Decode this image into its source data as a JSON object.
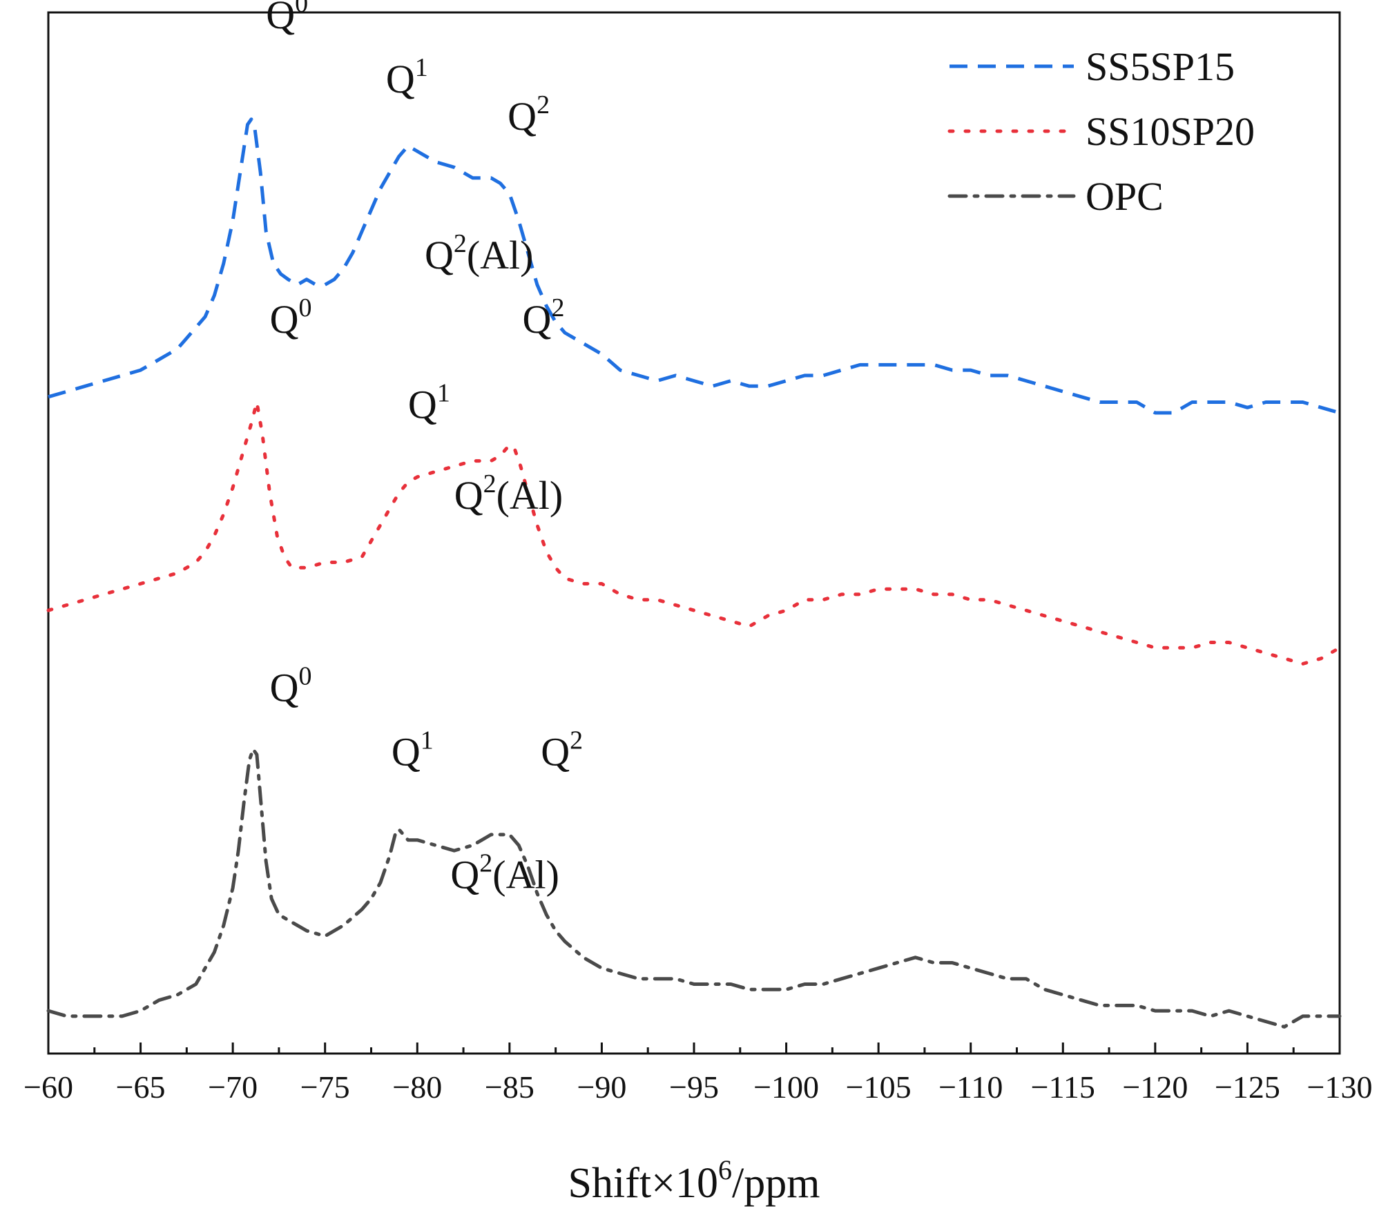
{
  "chart_data": {
    "type": "line",
    "title": "",
    "xlabel": "Shift×10",
    "xlabel_superscript": "6",
    "xlabel_unit": "/ppm",
    "ylabel": "",
    "xlim": [
      -60,
      -130
    ],
    "x_ticks": [
      -60,
      -65,
      -70,
      -75,
      -80,
      -85,
      -90,
      -95,
      -100,
      -105,
      -110,
      -115,
      -120,
      -125,
      -130
    ],
    "x_tick_labels": [
      "−60",
      "−65",
      "−70",
      "−75",
      "−80",
      "−85",
      "−90",
      "−95",
      "−100",
      "−105",
      "−110",
      "−115",
      "−120",
      "−125",
      "−130"
    ],
    "ylim": [
      0,
      1.95
    ],
    "grid": false,
    "legend_position": "top-right",
    "series": [
      {
        "name": "SS5SP15",
        "color": "#1f6fe0",
        "style": "dashed",
        "x": [
          -60,
          -61,
          -62,
          -63,
          -64,
          -65,
          -66,
          -67,
          -67.5,
          -68,
          -68.5,
          -69,
          -69.5,
          -70,
          -70.4,
          -70.8,
          -71,
          -71.2,
          -71.5,
          -71.8,
          -72.2,
          -72.6,
          -73,
          -73.5,
          -74,
          -74.5,
          -75,
          -75.5,
          -76,
          -76.5,
          -77,
          -77.5,
          -78,
          -78.5,
          -79,
          -79.5,
          -80,
          -80.5,
          -81,
          -82,
          -83,
          -84,
          -84.5,
          -85,
          -85.5,
          -86,
          -86.5,
          -87,
          -87.5,
          -88,
          -89,
          -90,
          -91,
          -92,
          -93,
          -94,
          -95,
          -96,
          -97,
          -98,
          -99,
          -100,
          -101,
          -102,
          -103,
          -104,
          -105,
          -106,
          -107,
          -108,
          -109,
          -110,
          -111,
          -112,
          -113,
          -114,
          -115,
          -116,
          -117,
          -118,
          -119,
          -120,
          -121,
          -122,
          -123,
          -124,
          -125,
          -126,
          -127,
          -128,
          -129,
          -130
        ],
        "y": [
          1.23,
          1.24,
          1.25,
          1.26,
          1.27,
          1.28,
          1.3,
          1.32,
          1.34,
          1.36,
          1.38,
          1.42,
          1.48,
          1.56,
          1.65,
          1.74,
          1.75,
          1.73,
          1.65,
          1.54,
          1.48,
          1.46,
          1.45,
          1.44,
          1.45,
          1.44,
          1.44,
          1.45,
          1.47,
          1.5,
          1.54,
          1.58,
          1.62,
          1.65,
          1.68,
          1.7,
          1.69,
          1.68,
          1.67,
          1.66,
          1.64,
          1.64,
          1.63,
          1.61,
          1.56,
          1.5,
          1.44,
          1.4,
          1.37,
          1.35,
          1.33,
          1.31,
          1.28,
          1.27,
          1.26,
          1.27,
          1.26,
          1.25,
          1.26,
          1.25,
          1.25,
          1.26,
          1.27,
          1.27,
          1.28,
          1.29,
          1.29,
          1.29,
          1.29,
          1.29,
          1.28,
          1.28,
          1.27,
          1.27,
          1.26,
          1.25,
          1.24,
          1.23,
          1.22,
          1.22,
          1.22,
          1.2,
          1.2,
          1.22,
          1.22,
          1.22,
          1.21,
          1.22,
          1.22,
          1.22,
          1.21,
          1.2
        ]
      },
      {
        "name": "SS10SP20",
        "color": "#e8303a",
        "style": "dotted",
        "x": [
          -60,
          -61,
          -62,
          -63,
          -64,
          -65,
          -66,
          -67,
          -68,
          -68.5,
          -69,
          -69.5,
          -70,
          -70.5,
          -71,
          -71.3,
          -71.6,
          -72,
          -72.4,
          -72.8,
          -73.2,
          -74,
          -75,
          -76,
          -77,
          -77.5,
          -78,
          -78.5,
          -79,
          -79.5,
          -80,
          -81,
          -82,
          -83,
          -84,
          -84.5,
          -85,
          -85.3,
          -85.6,
          -86,
          -86.5,
          -87,
          -87.5,
          -88,
          -89,
          -90,
          -91,
          -92,
          -93,
          -94,
          -95,
          -96,
          -97,
          -98,
          -99,
          -100,
          -101,
          -102,
          -103,
          -104,
          -105,
          -106,
          -107,
          -108,
          -109,
          -110,
          -111,
          -112,
          -113,
          -114,
          -115,
          -116,
          -117,
          -118,
          -119,
          -120,
          -121,
          -122,
          -123,
          -124,
          -125,
          -126,
          -127,
          -128,
          -129,
          -130
        ],
        "y": [
          0.83,
          0.84,
          0.85,
          0.86,
          0.87,
          0.88,
          0.89,
          0.9,
          0.92,
          0.94,
          0.97,
          1.01,
          1.06,
          1.12,
          1.18,
          1.22,
          1.16,
          1.05,
          0.97,
          0.93,
          0.91,
          0.91,
          0.92,
          0.92,
          0.93,
          0.96,
          0.99,
          1.02,
          1.05,
          1.07,
          1.08,
          1.09,
          1.1,
          1.11,
          1.11,
          1.12,
          1.14,
          1.13,
          1.1,
          1.05,
          0.99,
          0.94,
          0.91,
          0.89,
          0.88,
          0.88,
          0.86,
          0.85,
          0.85,
          0.84,
          0.83,
          0.82,
          0.81,
          0.8,
          0.82,
          0.83,
          0.85,
          0.85,
          0.86,
          0.86,
          0.87,
          0.87,
          0.87,
          0.86,
          0.86,
          0.85,
          0.85,
          0.84,
          0.83,
          0.82,
          0.81,
          0.8,
          0.79,
          0.78,
          0.77,
          0.76,
          0.76,
          0.76,
          0.77,
          0.77,
          0.76,
          0.75,
          0.74,
          0.73,
          0.74,
          0.76
        ]
      },
      {
        "name": "OPC",
        "color": "#4a4a4a",
        "style": "dashdot",
        "x": [
          -60,
          -61,
          -62,
          -63,
          -64,
          -65,
          -66,
          -67,
          -68,
          -68.5,
          -69,
          -69.5,
          -70,
          -70.3,
          -70.6,
          -70.9,
          -71.1,
          -71.3,
          -71.5,
          -71.8,
          -72.1,
          -72.5,
          -73,
          -74,
          -75,
          -76,
          -77,
          -77.5,
          -78,
          -78.5,
          -78.8,
          -79,
          -79.5,
          -80,
          -81,
          -82,
          -83,
          -83.5,
          -84,
          -84.5,
          -85,
          -85.5,
          -86,
          -86.5,
          -87,
          -87.5,
          -88,
          -89,
          -90,
          -91,
          -92,
          -93,
          -94,
          -95,
          -96,
          -97,
          -98,
          -99,
          -100,
          -101,
          -102,
          -103,
          -104,
          -105,
          -106,
          -107,
          -108,
          -109,
          -110,
          -111,
          -112,
          -113,
          -114,
          -115,
          -116,
          -117,
          -118,
          -119,
          -120,
          -121,
          -122,
          -123,
          -124,
          -125,
          -126,
          -127,
          -128,
          -129,
          -130
        ],
        "y": [
          0.08,
          0.07,
          0.07,
          0.07,
          0.07,
          0.08,
          0.1,
          0.11,
          0.13,
          0.16,
          0.19,
          0.24,
          0.31,
          0.38,
          0.47,
          0.55,
          0.57,
          0.56,
          0.48,
          0.36,
          0.29,
          0.26,
          0.25,
          0.23,
          0.22,
          0.24,
          0.27,
          0.29,
          0.32,
          0.37,
          0.41,
          0.42,
          0.4,
          0.4,
          0.39,
          0.38,
          0.39,
          0.4,
          0.41,
          0.41,
          0.41,
          0.39,
          0.35,
          0.3,
          0.26,
          0.23,
          0.21,
          0.18,
          0.16,
          0.15,
          0.14,
          0.14,
          0.14,
          0.13,
          0.13,
          0.13,
          0.12,
          0.12,
          0.12,
          0.13,
          0.13,
          0.14,
          0.15,
          0.16,
          0.17,
          0.18,
          0.17,
          0.17,
          0.16,
          0.15,
          0.14,
          0.14,
          0.12,
          0.11,
          0.1,
          0.09,
          0.09,
          0.09,
          0.08,
          0.08,
          0.08,
          0.07,
          0.08,
          0.07,
          0.06,
          0.05,
          0.07,
          0.07,
          0.07
        ]
      }
    ],
    "annotations": [
      {
        "series": "SS5SP15",
        "text": "Q",
        "sup": "0",
        "x": -71.8,
        "y": 1.92
      },
      {
        "series": "SS5SP15",
        "text": "Q",
        "sup": "1",
        "x": -78.3,
        "y": 1.8
      },
      {
        "series": "SS5SP15",
        "text": "Q",
        "sup": "2",
        "x": -84.9,
        "y": 1.73
      },
      {
        "series": "SS5SP15",
        "text": "Q",
        "sup": "2",
        "suffix": "(Al)",
        "x": -80.4,
        "y": 1.47
      },
      {
        "series": "SS10SP20",
        "text": "Q",
        "sup": "0",
        "x": -72.0,
        "y": 1.35
      },
      {
        "series": "SS10SP20",
        "text": "Q",
        "sup": "1",
        "x": -79.5,
        "y": 1.19
      },
      {
        "series": "SS10SP20",
        "text": "Q",
        "sup": "2",
        "x": -85.7,
        "y": 1.35
      },
      {
        "series": "SS10SP20",
        "text": "Q",
        "sup": "2",
        "suffix": "(Al)",
        "x": -82.0,
        "y": 1.02
      },
      {
        "series": "OPC",
        "text": "Q",
        "sup": "0",
        "x": -72.0,
        "y": 0.66
      },
      {
        "series": "OPC",
        "text": "Q",
        "sup": "1",
        "x": -78.6,
        "y": 0.54
      },
      {
        "series": "OPC",
        "text": "Q",
        "sup": "2",
        "x": -86.7,
        "y": 0.54
      },
      {
        "series": "OPC",
        "text": "Q",
        "sup": "2",
        "suffix": "(Al)",
        "x": -81.8,
        "y": 0.31
      }
    ]
  }
}
